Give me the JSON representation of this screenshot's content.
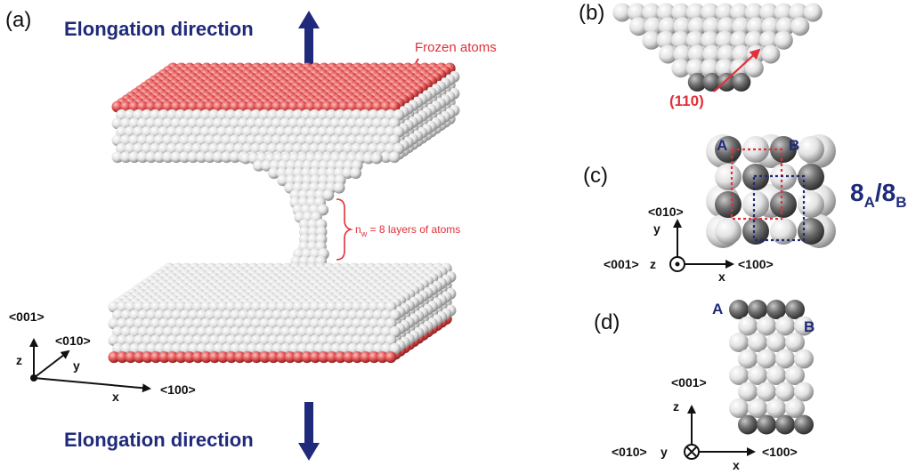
{
  "colors": {
    "blue": "#1f2a7a",
    "red": "#e0303a",
    "atom_light": "#e6e6e6",
    "atom_dark": "#707070",
    "frozen_atom": "#e05050"
  },
  "panel_a": {
    "label": "(a)",
    "elongation_top": "Elongation direction",
    "elongation_bottom": "Elongation direction",
    "frozen_atoms": "Frozen atoms",
    "nw_prefix": "n",
    "nw_sub": "w",
    "nw_suffix": " = 8 layers of atoms",
    "axis_001": "<001>",
    "axis_010": "<010>",
    "axis_100": "<100>",
    "axis_z": "z",
    "axis_y": "y",
    "axis_x": "x"
  },
  "panel_b": {
    "label": "(b)",
    "facet": "(110)"
  },
  "panel_c": {
    "label": "(c)",
    "site_a": "A",
    "site_b": "B",
    "stack_main1": "8",
    "stack_sub1": "A",
    "stack_mid": "/8",
    "stack_sub2": "B",
    "axis_010": "<010>",
    "axis_001": "<001>",
    "axis_100": "<100>",
    "axis_y": "y",
    "axis_z": "z",
    "axis_x": "x"
  },
  "panel_d": {
    "label": "(d)",
    "site_a": "A",
    "site_b": "B",
    "axis_001": "<001>",
    "axis_010": "<010>",
    "axis_100": "<100>",
    "axis_z": "z",
    "axis_y": "y",
    "axis_x": "x"
  }
}
